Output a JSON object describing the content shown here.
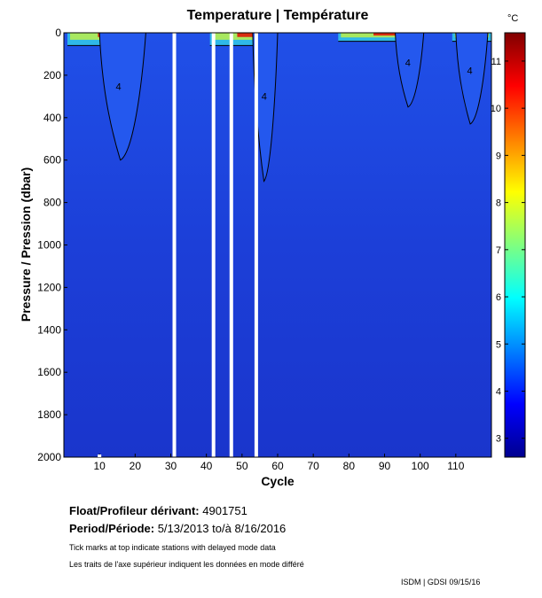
{
  "chart_data": {
    "type": "heatmap",
    "title": "Temperature | Température",
    "xlabel": "Cycle",
    "ylabel": "Pressure / Pression (dbar)",
    "xlim": [
      0,
      120
    ],
    "ylim": [
      2000,
      0
    ],
    "x_ticks": [
      10,
      20,
      30,
      40,
      50,
      60,
      70,
      80,
      90,
      100,
      110
    ],
    "y_ticks": [
      0,
      200,
      400,
      600,
      800,
      1000,
      1200,
      1400,
      1600,
      1800,
      2000
    ],
    "colorbar": {
      "unit": "°C",
      "range": [
        2.6,
        11.6
      ],
      "ticks": [
        3,
        4,
        5,
        6,
        7,
        8,
        9,
        10,
        11
      ]
    },
    "missing_cycles": [
      31,
      42,
      47,
      54
    ],
    "delayed_mode_marks": [
      10
    ],
    "background_temperature_c": 3.6,
    "warm_layers": [
      {
        "cycles": [
          1,
          19
        ],
        "max_depth_dbar": 60,
        "surface_temp_c": 10
      },
      {
        "cycles": [
          41,
          57
        ],
        "max_depth_dbar": 60,
        "surface_temp_c": 10
      },
      {
        "cycles": [
          77,
          98
        ],
        "max_depth_dbar": 40,
        "surface_temp_c": 10
      },
      {
        "cycles": [
          109,
          119
        ],
        "max_depth_dbar": 40,
        "surface_temp_c": 10
      }
    ],
    "contour_4c_regions": [
      {
        "cycles": [
          10,
          23
        ],
        "depth_dbar": [
          0,
          600
        ]
      },
      {
        "cycles": [
          53,
          60
        ],
        "depth_dbar": [
          0,
          700
        ]
      },
      {
        "cycles": [
          93,
          101
        ],
        "depth_dbar": [
          0,
          350
        ]
      },
      {
        "cycles": [
          110,
          119
        ],
        "depth_dbar": [
          0,
          430
        ]
      }
    ],
    "contour_label": "4"
  },
  "info": {
    "float_label": "Float/Profileur dérivant:",
    "float_id": "4901751",
    "period_label": "Period/Période:",
    "period_value": "5/13/2013  to/à  8/16/2016",
    "note_en": "Tick marks at top indicate stations with delayed mode data",
    "note_fr": "Les traits de l'axe supérieur indiquent les données en mode différé",
    "credit": "ISDM | GDSI  09/15/16"
  },
  "colors": {
    "deep": "#1d3bd6",
    "warm": "#d92d10",
    "missing": "#ffffff"
  }
}
